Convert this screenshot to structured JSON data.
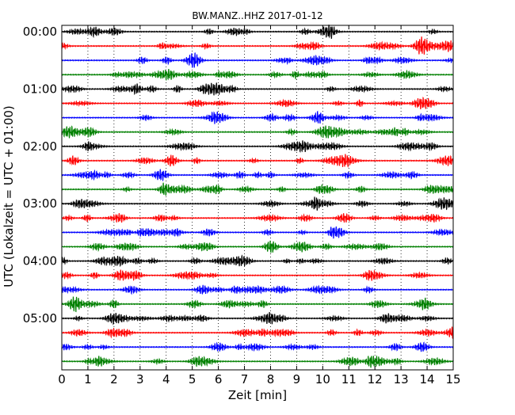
{
  "chart_data": {
    "type": "line",
    "title": "BW.MANZ..HHZ 2017-01-12",
    "xlabel": "Zeit  [min]",
    "ylabel": "UTC (Lokalzeit = UTC + 01:00)",
    "xlim": [
      0,
      15
    ],
    "x_ticks": [
      0,
      1,
      2,
      3,
      4,
      5,
      6,
      7,
      8,
      9,
      10,
      11,
      12,
      13,
      14,
      15
    ],
    "x_tick_labels": [
      "0",
      "1",
      "2",
      "3",
      "4",
      "5",
      "6",
      "7",
      "8",
      "9",
      "10",
      "11",
      "12",
      "13",
      "14",
      "15"
    ],
    "y_tick_labels": [
      "00:00",
      "01:00",
      "02:00",
      "03:00",
      "04:00",
      "05:00"
    ],
    "y_tick_rows": [
      0,
      4,
      8,
      12,
      16,
      20
    ],
    "trace_count": 24,
    "trace_interval_minutes": 15,
    "trace_colors": [
      "#000000",
      "#ff0000",
      "#0000ff",
      "#008000"
    ],
    "grid": {
      "vertical": "dotted",
      "horizontal": false
    },
    "legend": "none"
  }
}
